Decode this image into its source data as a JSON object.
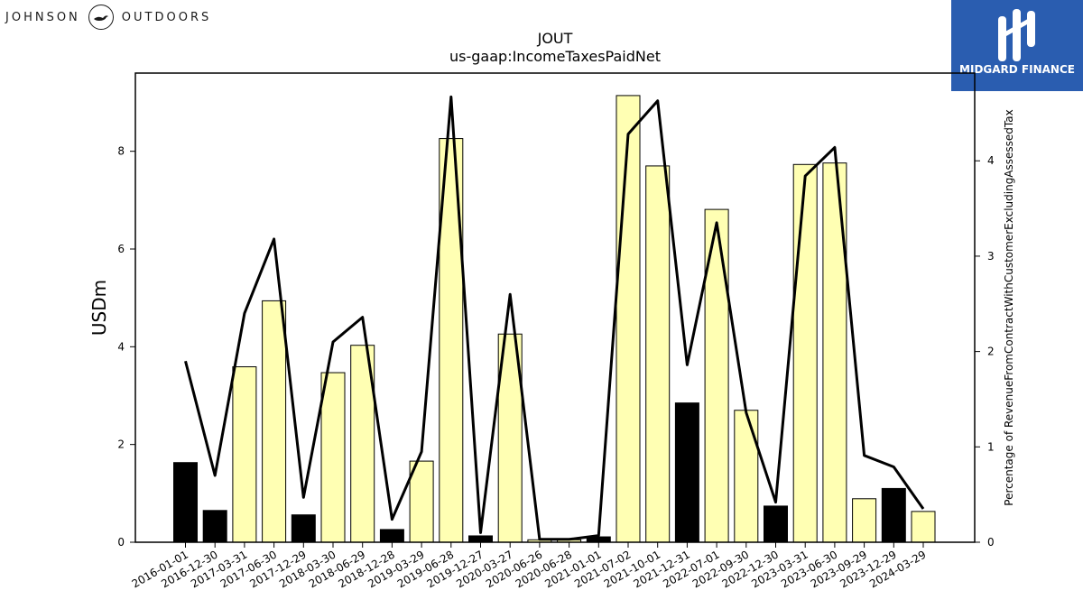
{
  "branding": {
    "company_left": "JOHNSON",
    "company_right": "OUTDOORS",
    "logo_icon": "duck-emblem-icon",
    "partner": "MIDGARD FINANCE",
    "partner_icon": "midgard-logo-icon",
    "partner_color": "#2a5db0"
  },
  "chart_data": {
    "type": "bar",
    "title": "JOUT",
    "subtitle": "us-gaap:IncomeTaxesPaidNet",
    "ylabel": "USDm",
    "y2label": "Percentage of RevenueFromContractWithCustomerExcludingAssessedTax",
    "ylim": [
      0,
      9.6
    ],
    "y2lim": [
      0,
      4.92
    ],
    "yticks": [
      0,
      2,
      4,
      6,
      8
    ],
    "y2ticks": [
      0,
      1,
      2,
      3,
      4
    ],
    "grid": false,
    "categories": [
      "2016-01-01",
      "2016-12-30",
      "2017-03-31",
      "2017-06-30",
      "2017-12-29",
      "2018-03-30",
      "2018-06-29",
      "2018-12-28",
      "2019-03-29",
      "2019-06-28",
      "2019-12-27",
      "2020-03-27",
      "2020-06-26",
      "2020-06-28",
      "2021-01-01",
      "2021-07-02",
      "2021-10-01",
      "2021-12-31",
      "2022-07-01",
      "2022-09-30",
      "2022-12-30",
      "2023-03-31",
      "2023-06-30",
      "2023-09-29",
      "2023-12-29",
      "2024-03-29"
    ],
    "bar_values": [
      1.63,
      0.65,
      3.59,
      4.94,
      0.56,
      3.47,
      4.03,
      0.26,
      1.66,
      8.26,
      0.13,
      4.26,
      0.05,
      0.05,
      0.11,
      9.14,
      7.7,
      2.85,
      6.81,
      2.7,
      0.74,
      7.73,
      7.76,
      0.89,
      1.1,
      0.63
    ],
    "bar_colors": [
      "#000000",
      "#000000",
      "#ffffb3",
      "#ffffb3",
      "#000000",
      "#ffffb3",
      "#ffffb3",
      "#000000",
      "#ffffb3",
      "#ffffb3",
      "#000000",
      "#ffffb3",
      "#ffffb3",
      "#ffffb3",
      "#000000",
      "#ffffb3",
      "#ffffb3",
      "#000000",
      "#ffffb3",
      "#ffffb3",
      "#000000",
      "#ffffb3",
      "#ffffb3",
      "#ffffb3",
      "#000000",
      "#ffffb3"
    ],
    "line_values": [
      1.9,
      0.7,
      2.4,
      3.18,
      0.47,
      2.1,
      2.36,
      0.24,
      0.95,
      4.67,
      0.1,
      2.6,
      0.03,
      0.03,
      0.07,
      4.28,
      4.63,
      1.86,
      3.35,
      1.36,
      0.42,
      3.84,
      4.14,
      0.91,
      0.79,
      0.35
    ],
    "colors": {
      "highlight_bar": "#ffffb3",
      "dark_bar": "#000000",
      "line": "#000000"
    }
  }
}
